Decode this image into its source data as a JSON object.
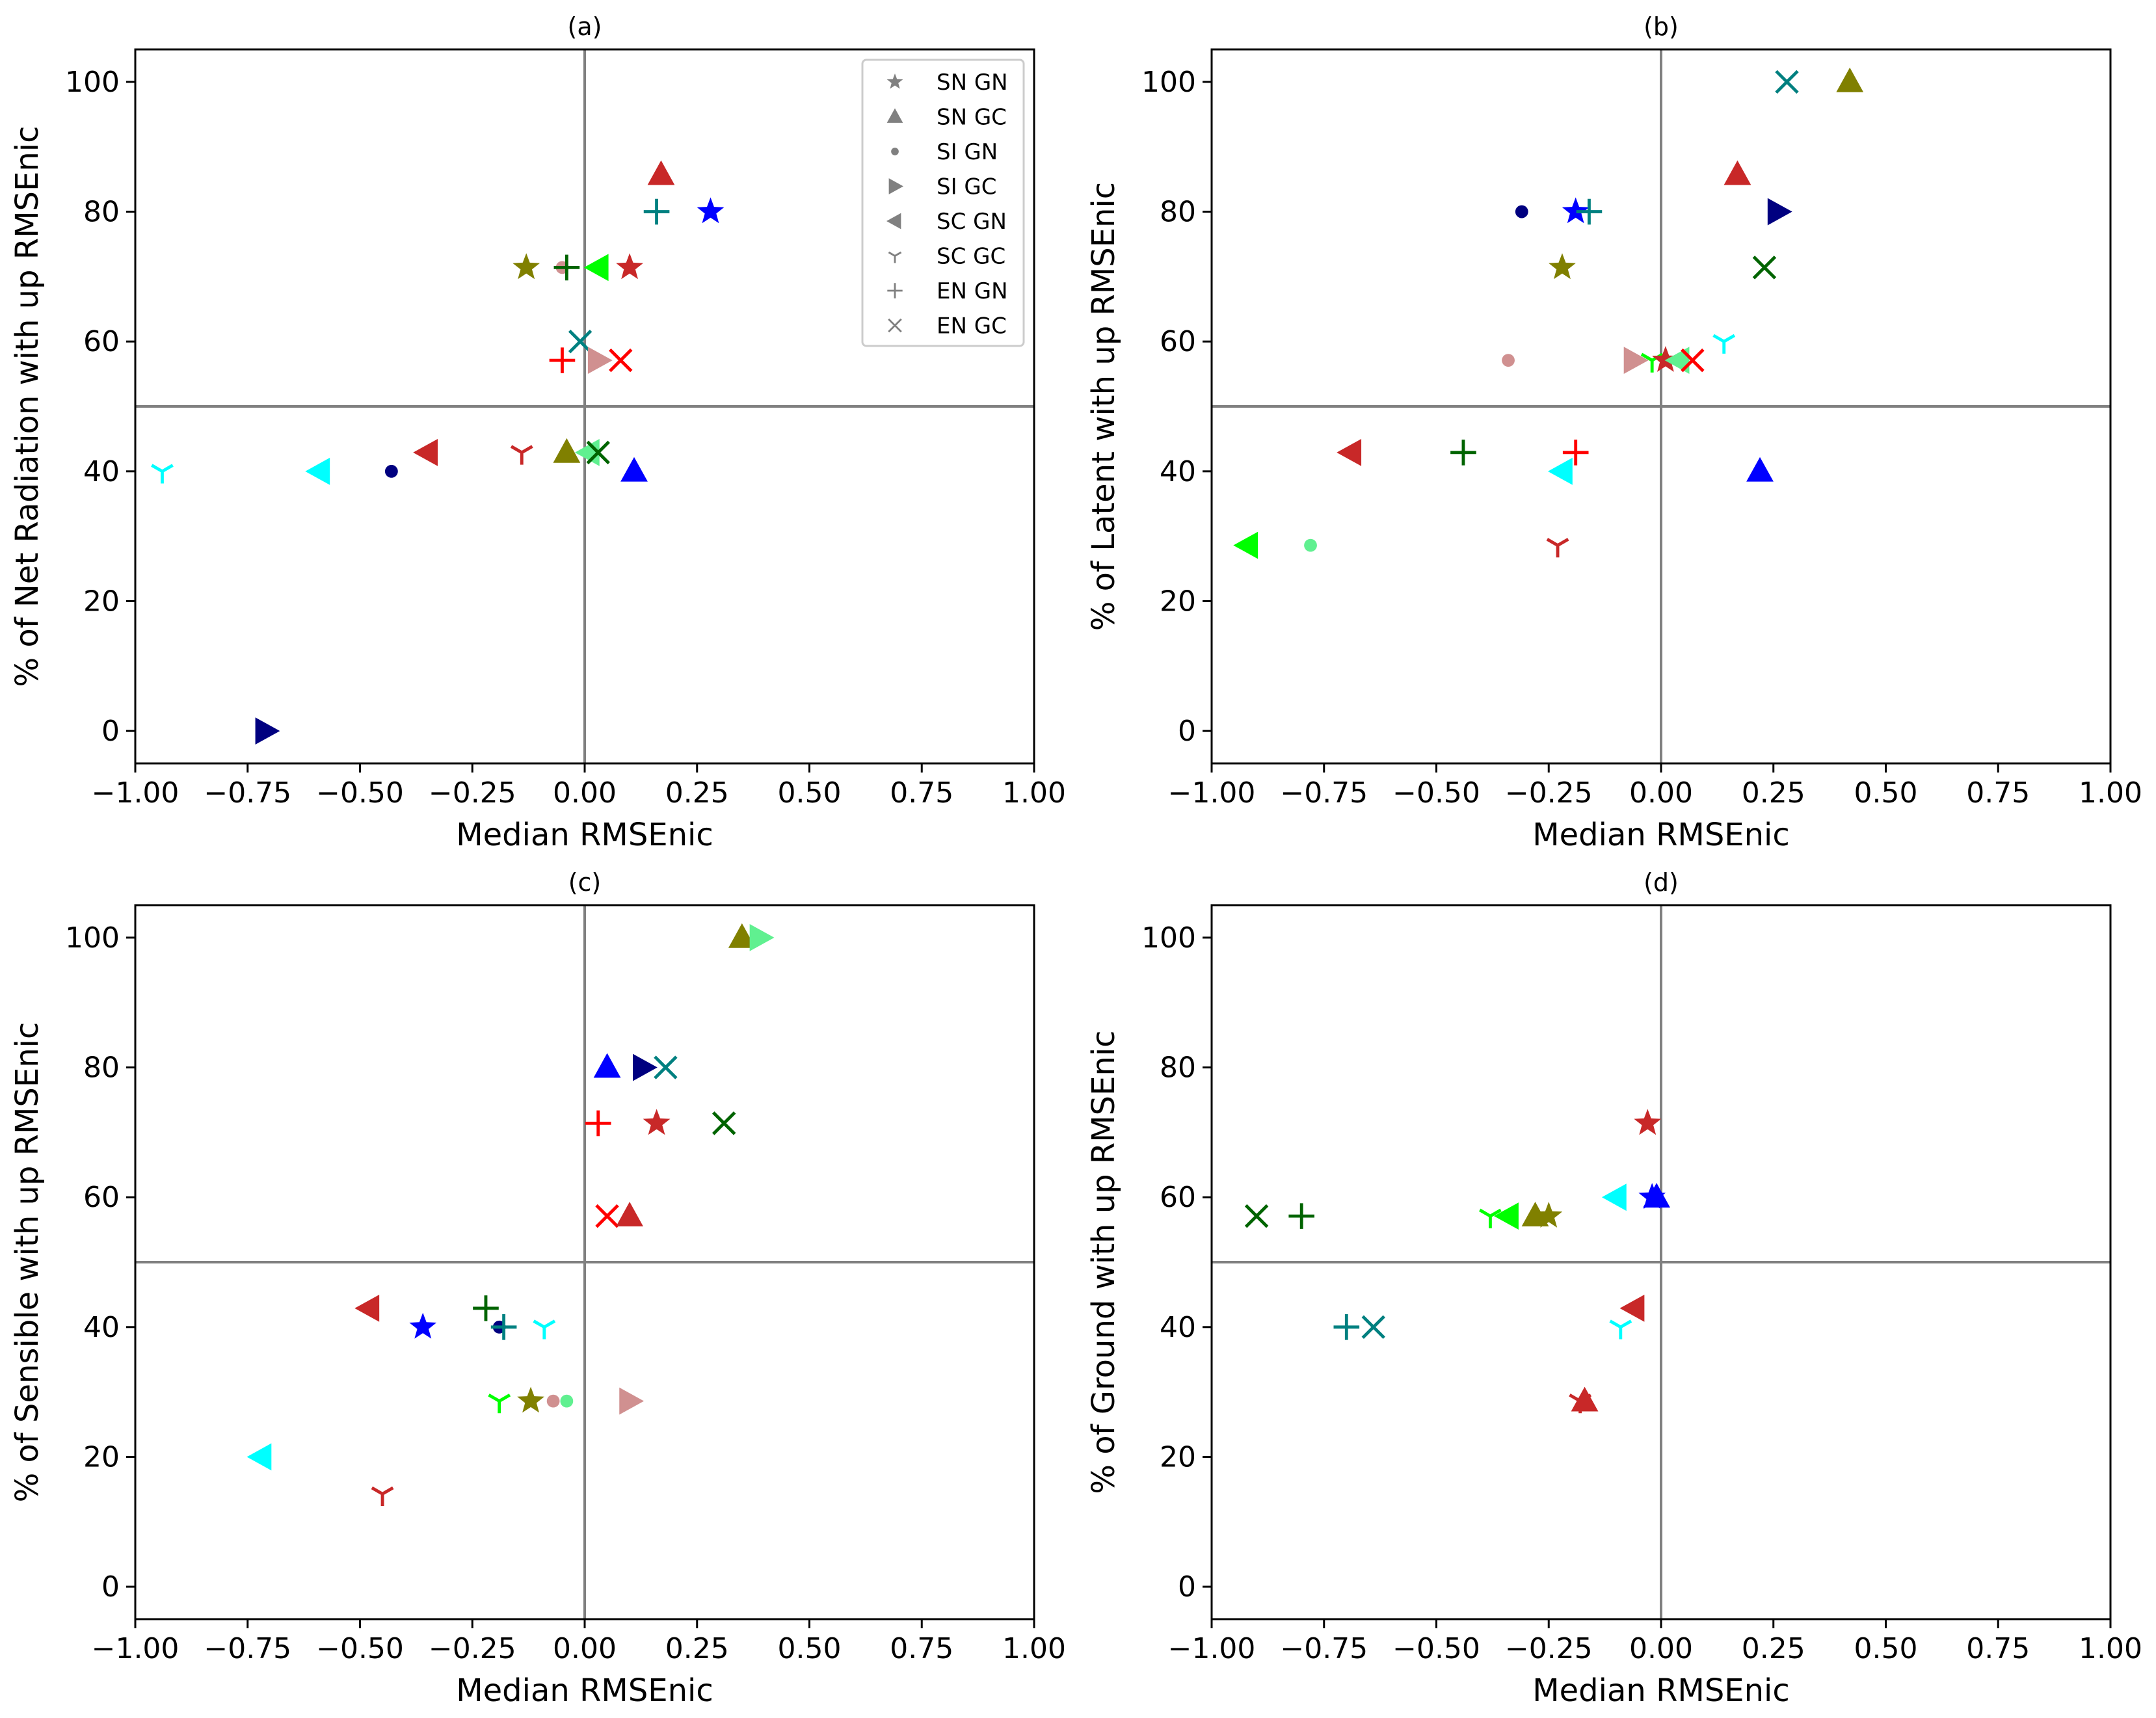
{
  "figure": {
    "legend": {
      "placement": "top-right of panel (a)",
      "entries": [
        {
          "label": "SN GN",
          "marker": "star"
        },
        {
          "label": "SN GC",
          "marker": "triangle-up"
        },
        {
          "label": "SI GN",
          "marker": "point"
        },
        {
          "label": "SI GC",
          "marker": "triangle-right"
        },
        {
          "label": "SC GN",
          "marker": "triangle-left"
        },
        {
          "label": "SC GC",
          "marker": "tri-down"
        },
        {
          "label": "EN GN",
          "marker": "plus"
        },
        {
          "label": "EN GC",
          "marker": "x"
        }
      ],
      "marker_color": "#808080"
    },
    "reference_lines": {
      "x": 0,
      "y": 50,
      "color": "#808080"
    }
  },
  "chart_data": [
    {
      "type": "scatter",
      "title": "(a)",
      "xlabel": "Median RMSEnic",
      "ylabel": "% of Net Radiation with up RMSEnic",
      "xlim": [
        -1.0,
        1.0
      ],
      "ylim": [
        -5,
        105
      ],
      "xticks": [
        "−1.00",
        "−0.75",
        "−0.50",
        "−0.25",
        "0.00",
        "0.25",
        "0.50",
        "0.75",
        "1.00"
      ],
      "xtick_values": [
        -1.0,
        -0.75,
        -0.5,
        -0.25,
        0.0,
        0.25,
        0.5,
        0.75,
        1.0
      ],
      "yticks": [
        "0",
        "20",
        "40",
        "60",
        "80",
        "100"
      ],
      "ytick_values": [
        0,
        20,
        40,
        60,
        80,
        100
      ],
      "points": [
        {
          "x": 0.17,
          "y": 85.7,
          "marker": "triangle-up",
          "color": "#c82828"
        },
        {
          "x": 0.28,
          "y": 80.0,
          "marker": "star",
          "color": "#0000ff"
        },
        {
          "x": 0.16,
          "y": 80.0,
          "marker": "plus",
          "color": "#008080"
        },
        {
          "x": -0.13,
          "y": 71.4,
          "marker": "star",
          "color": "#808000"
        },
        {
          "x": -0.05,
          "y": 71.4,
          "marker": "point",
          "color": "#d09090"
        },
        {
          "x": -0.04,
          "y": 71.4,
          "marker": "plus",
          "color": "#006400"
        },
        {
          "x": 0.03,
          "y": 71.4,
          "marker": "triangle-left",
          "color": "#00ff00"
        },
        {
          "x": 0.1,
          "y": 71.4,
          "marker": "star",
          "color": "#c82828"
        },
        {
          "x": -0.01,
          "y": 60.0,
          "marker": "x",
          "color": "#008080"
        },
        {
          "x": -0.05,
          "y": 57.1,
          "marker": "plus",
          "color": "#ff0000"
        },
        {
          "x": 0.03,
          "y": 57.1,
          "marker": "triangle-right",
          "color": "#d09090"
        },
        {
          "x": 0.08,
          "y": 57.1,
          "marker": "x",
          "color": "#ff0000"
        },
        {
          "x": -0.35,
          "y": 42.9,
          "marker": "triangle-left",
          "color": "#c82828"
        },
        {
          "x": -0.14,
          "y": 42.9,
          "marker": "tri-down",
          "color": "#c82828"
        },
        {
          "x": -0.04,
          "y": 42.9,
          "marker": "triangle-up",
          "color": "#808000"
        },
        {
          "x": 0.01,
          "y": 42.9,
          "marker": "triangle-left",
          "color": "#60f090"
        },
        {
          "x": 0.03,
          "y": 42.9,
          "marker": "x",
          "color": "#006400"
        },
        {
          "x": -0.94,
          "y": 40.0,
          "marker": "tri-down",
          "color": "#00ffff"
        },
        {
          "x": -0.59,
          "y": 40.0,
          "marker": "triangle-left",
          "color": "#00ffff"
        },
        {
          "x": -0.43,
          "y": 40.0,
          "marker": "point",
          "color": "#000080"
        },
        {
          "x": 0.11,
          "y": 40.0,
          "marker": "triangle-up",
          "color": "#0000ff"
        },
        {
          "x": -0.71,
          "y": 0.0,
          "marker": "triangle-right",
          "color": "#000080"
        }
      ]
    },
    {
      "type": "scatter",
      "title": "(b)",
      "xlabel": "Median RMSEnic",
      "ylabel": "% of Latent with up RMSEnic",
      "xlim": [
        -1.0,
        1.0
      ],
      "ylim": [
        -5,
        105
      ],
      "xticks": [
        "−1.00",
        "−0.75",
        "−0.50",
        "−0.25",
        "0.00",
        "0.25",
        "0.50",
        "0.75",
        "1.00"
      ],
      "xtick_values": [
        -1.0,
        -0.75,
        -0.5,
        -0.25,
        0.0,
        0.25,
        0.5,
        0.75,
        1.0
      ],
      "yticks": [
        "0",
        "20",
        "40",
        "60",
        "80",
        "100"
      ],
      "ytick_values": [
        0,
        20,
        40,
        60,
        80,
        100
      ],
      "points": [
        {
          "x": 0.28,
          "y": 100.0,
          "marker": "x",
          "color": "#008080"
        },
        {
          "x": 0.42,
          "y": 100.0,
          "marker": "triangle-up",
          "color": "#808000"
        },
        {
          "x": 0.17,
          "y": 85.7,
          "marker": "triangle-up",
          "color": "#c82828"
        },
        {
          "x": -0.31,
          "y": 80.0,
          "marker": "point",
          "color": "#000080"
        },
        {
          "x": -0.19,
          "y": 80.0,
          "marker": "star",
          "color": "#0000ff"
        },
        {
          "x": -0.16,
          "y": 80.0,
          "marker": "plus",
          "color": "#008080"
        },
        {
          "x": 0.26,
          "y": 80.0,
          "marker": "triangle-right",
          "color": "#000080"
        },
        {
          "x": -0.22,
          "y": 71.4,
          "marker": "star",
          "color": "#808000"
        },
        {
          "x": 0.23,
          "y": 71.4,
          "marker": "x",
          "color": "#006400"
        },
        {
          "x": 0.14,
          "y": 60.0,
          "marker": "tri-down",
          "color": "#00ffff"
        },
        {
          "x": -0.34,
          "y": 57.1,
          "marker": "point",
          "color": "#d09090"
        },
        {
          "x": -0.06,
          "y": 57.1,
          "marker": "triangle-right",
          "color": "#d09090"
        },
        {
          "x": -0.02,
          "y": 57.1,
          "marker": "tri-down",
          "color": "#00ff00"
        },
        {
          "x": 0.01,
          "y": 57.1,
          "marker": "star",
          "color": "#c82828"
        },
        {
          "x": 0.04,
          "y": 57.1,
          "marker": "triangle-left",
          "color": "#60f090"
        },
        {
          "x": 0.07,
          "y": 57.1,
          "marker": "x",
          "color": "#ff0000"
        },
        {
          "x": -0.69,
          "y": 42.9,
          "marker": "triangle-left",
          "color": "#c82828"
        },
        {
          "x": -0.44,
          "y": 42.9,
          "marker": "plus",
          "color": "#006400"
        },
        {
          "x": -0.19,
          "y": 42.9,
          "marker": "plus",
          "color": "#ff0000"
        },
        {
          "x": -0.22,
          "y": 40.0,
          "marker": "triangle-left",
          "color": "#00ffff"
        },
        {
          "x": 0.22,
          "y": 40.0,
          "marker": "triangle-up",
          "color": "#0000ff"
        },
        {
          "x": -0.92,
          "y": 28.6,
          "marker": "triangle-left",
          "color": "#00ff00"
        },
        {
          "x": -0.78,
          "y": 28.6,
          "marker": "point",
          "color": "#60f090"
        },
        {
          "x": -0.23,
          "y": 28.6,
          "marker": "tri-down",
          "color": "#c82828"
        }
      ]
    },
    {
      "type": "scatter",
      "title": "(c)",
      "xlabel": "Median RMSEnic",
      "ylabel": "% of Sensible with up RMSEnic",
      "xlim": [
        -1.0,
        1.0
      ],
      "ylim": [
        -5,
        105
      ],
      "xticks": [
        "−1.00",
        "−0.75",
        "−0.50",
        "−0.25",
        "0.00",
        "0.25",
        "0.50",
        "0.75",
        "1.00"
      ],
      "xtick_values": [
        -1.0,
        -0.75,
        -0.5,
        -0.25,
        0.0,
        0.25,
        0.5,
        0.75,
        1.0
      ],
      "yticks": [
        "0",
        "20",
        "40",
        "60",
        "80",
        "100"
      ],
      "ytick_values": [
        0,
        20,
        40,
        60,
        80,
        100
      ],
      "points": [
        {
          "x": 0.35,
          "y": 100.0,
          "marker": "triangle-up",
          "color": "#808000"
        },
        {
          "x": 0.39,
          "y": 100.0,
          "marker": "triangle-right",
          "color": "#60f090"
        },
        {
          "x": 0.05,
          "y": 80.0,
          "marker": "triangle-up",
          "color": "#0000ff"
        },
        {
          "x": 0.13,
          "y": 80.0,
          "marker": "triangle-right",
          "color": "#000080"
        },
        {
          "x": 0.18,
          "y": 80.0,
          "marker": "x",
          "color": "#008080"
        },
        {
          "x": 0.03,
          "y": 71.4,
          "marker": "plus",
          "color": "#ff0000"
        },
        {
          "x": 0.16,
          "y": 71.4,
          "marker": "star",
          "color": "#c82828"
        },
        {
          "x": 0.31,
          "y": 71.4,
          "marker": "x",
          "color": "#006400"
        },
        {
          "x": 0.05,
          "y": 57.1,
          "marker": "x",
          "color": "#ff0000"
        },
        {
          "x": 0.1,
          "y": 57.1,
          "marker": "triangle-up",
          "color": "#c82828"
        },
        {
          "x": -0.48,
          "y": 42.9,
          "marker": "triangle-left",
          "color": "#c82828"
        },
        {
          "x": -0.22,
          "y": 42.9,
          "marker": "plus",
          "color": "#006400"
        },
        {
          "x": -0.36,
          "y": 40.0,
          "marker": "star",
          "color": "#0000ff"
        },
        {
          "x": -0.19,
          "y": 40.0,
          "marker": "point",
          "color": "#000080"
        },
        {
          "x": -0.18,
          "y": 40.0,
          "marker": "plus",
          "color": "#008080"
        },
        {
          "x": -0.09,
          "y": 40.0,
          "marker": "tri-down",
          "color": "#00ffff"
        },
        {
          "x": -0.19,
          "y": 28.6,
          "marker": "tri-down",
          "color": "#00ff00"
        },
        {
          "x": -0.12,
          "y": 28.6,
          "marker": "star",
          "color": "#808000"
        },
        {
          "x": -0.07,
          "y": 28.6,
          "marker": "point",
          "color": "#d09090"
        },
        {
          "x": -0.04,
          "y": 28.6,
          "marker": "point",
          "color": "#60f090"
        },
        {
          "x": 0.1,
          "y": 28.6,
          "marker": "triangle-right",
          "color": "#d09090"
        },
        {
          "x": -0.72,
          "y": 20.0,
          "marker": "triangle-left",
          "color": "#00ffff"
        },
        {
          "x": -0.45,
          "y": 14.3,
          "marker": "tri-down",
          "color": "#c82828"
        }
      ]
    },
    {
      "type": "scatter",
      "title": "(d)",
      "xlabel": "Median RMSEnic",
      "ylabel": "% of Ground with up RMSEnic",
      "xlim": [
        -1.0,
        1.0
      ],
      "ylim": [
        -5,
        105
      ],
      "xticks": [
        "−1.00",
        "−0.75",
        "−0.50",
        "−0.25",
        "0.00",
        "0.25",
        "0.50",
        "0.75",
        "1.00"
      ],
      "xtick_values": [
        -1.0,
        -0.75,
        -0.5,
        -0.25,
        0.0,
        0.25,
        0.5,
        0.75,
        1.0
      ],
      "yticks": [
        "0",
        "20",
        "40",
        "60",
        "80",
        "100"
      ],
      "ytick_values": [
        0,
        20,
        40,
        60,
        80,
        100
      ],
      "points": [
        {
          "x": -0.03,
          "y": 71.4,
          "marker": "star",
          "color": "#c82828"
        },
        {
          "x": -0.1,
          "y": 60.0,
          "marker": "triangle-left",
          "color": "#00ffff"
        },
        {
          "x": -0.02,
          "y": 60.0,
          "marker": "star",
          "color": "#0000ff"
        },
        {
          "x": -0.01,
          "y": 60.0,
          "marker": "triangle-up",
          "color": "#0000ff"
        },
        {
          "x": -0.9,
          "y": 57.1,
          "marker": "x",
          "color": "#006400"
        },
        {
          "x": -0.8,
          "y": 57.1,
          "marker": "plus",
          "color": "#006400"
        },
        {
          "x": -0.38,
          "y": 57.1,
          "marker": "tri-down",
          "color": "#00ff00"
        },
        {
          "x": -0.34,
          "y": 57.1,
          "marker": "triangle-left",
          "color": "#00ff00"
        },
        {
          "x": -0.28,
          "y": 57.1,
          "marker": "triangle-up",
          "color": "#808000"
        },
        {
          "x": -0.25,
          "y": 57.1,
          "marker": "star",
          "color": "#808000"
        },
        {
          "x": -0.06,
          "y": 42.9,
          "marker": "triangle-left",
          "color": "#c82828"
        },
        {
          "x": -0.7,
          "y": 40.0,
          "marker": "plus",
          "color": "#008080"
        },
        {
          "x": -0.64,
          "y": 40.0,
          "marker": "x",
          "color": "#008080"
        },
        {
          "x": -0.09,
          "y": 40.0,
          "marker": "tri-down",
          "color": "#00ffff"
        },
        {
          "x": -0.18,
          "y": 28.6,
          "marker": "tri-down",
          "color": "#c82828"
        },
        {
          "x": -0.17,
          "y": 28.6,
          "marker": "triangle-up",
          "color": "#c82828"
        }
      ]
    }
  ]
}
